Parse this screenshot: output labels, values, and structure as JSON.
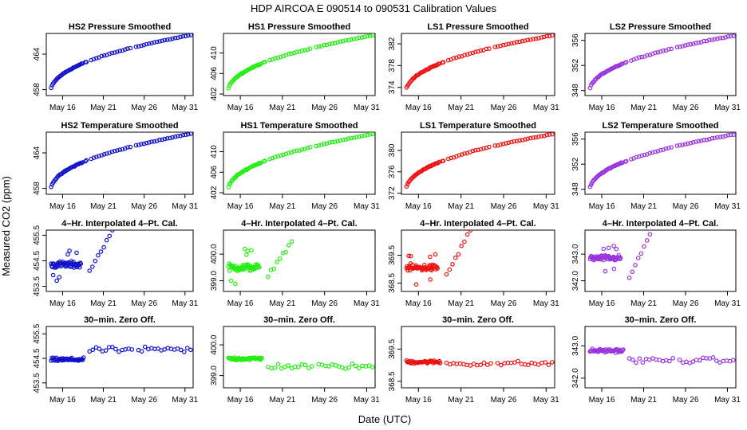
{
  "figure": {
    "title": "HDP   AIRCOA E   090514 to 090531   Calibration Values",
    "xlabel": "Date (UTC)",
    "ylabel": "Measured CO2 (ppm)"
  },
  "colors": {
    "HS2": "#1111cc",
    "HS1": "#22ee11",
    "LS1": "#ee1111",
    "LS2": "#9933dd"
  },
  "chart_data": {
    "type": "scatter",
    "x_unit": "day of May 2009",
    "x_range": [
      14,
      32
    ],
    "x_ticks": [
      {
        "value": 16,
        "label": "May 16"
      },
      {
        "value": 21,
        "label": "May 21"
      },
      {
        "value": 26,
        "label": "May 26"
      },
      {
        "value": 31,
        "label": "May 31"
      }
    ],
    "panels": [
      {
        "row": 0,
        "col": 0,
        "title": "HS2 Pressure Smoothed",
        "series": "HS2",
        "ylim": [
          457,
          467.5
        ],
        "yticks": [
          {
            "value": 458,
            "label": "458"
          },
          {
            "value": 464,
            "label": "464"
          }
        ],
        "pattern": "smooth",
        "y_start": 457.3,
        "y_end": 467.3
      },
      {
        "row": 0,
        "col": 1,
        "title": "HS1 Pressure Smoothed",
        "series": "HS1",
        "ylim": [
          401.7,
          413.8
        ],
        "yticks": [
          {
            "value": 402,
            "label": "402"
          },
          {
            "value": 406,
            "label": "406"
          },
          {
            "value": 410,
            "label": "410"
          }
        ],
        "pattern": "smooth",
        "y_start": 402.0,
        "y_end": 413.5
      },
      {
        "row": 0,
        "col": 2,
        "title": "LS1 Pressure Smoothed",
        "series": "LS1",
        "ylim": [
          372.5,
          383.9
        ],
        "yticks": [
          {
            "value": 374,
            "label": "374"
          },
          {
            "value": 378,
            "label": "378"
          },
          {
            "value": 382,
            "label": "382"
          }
        ],
        "pattern": "smooth",
        "y_start": 372.8,
        "y_end": 383.6
      },
      {
        "row": 0,
        "col": 3,
        "title": "LS2 Pressure Smoothed",
        "series": "LS2",
        "ylim": [
          347.2,
          357.1
        ],
        "yticks": [
          {
            "value": 348,
            "label": "348"
          },
          {
            "value": 352,
            "label": "352"
          },
          {
            "value": 356,
            "label": "356"
          }
        ],
        "pattern": "smooth",
        "y_start": 347.5,
        "y_end": 356.8
      },
      {
        "row": 1,
        "col": 0,
        "title": "HS2 Temperature Smoothed",
        "series": "HS2",
        "ylim": [
          457,
          467.5
        ],
        "yticks": [
          {
            "value": 458,
            "label": "458"
          },
          {
            "value": 464,
            "label": "464"
          }
        ],
        "pattern": "smooth",
        "y_start": 457.3,
        "y_end": 467.3
      },
      {
        "row": 1,
        "col": 1,
        "title": "HS1 Temperature Smoothed",
        "series": "HS1",
        "ylim": [
          401.7,
          413.8
        ],
        "yticks": [
          {
            "value": 402,
            "label": "402"
          },
          {
            "value": 406,
            "label": "406"
          },
          {
            "value": 410,
            "label": "410"
          }
        ],
        "pattern": "smooth",
        "y_start": 402.0,
        "y_end": 413.5
      },
      {
        "row": 1,
        "col": 2,
        "title": "LS1 Temperature Smoothed",
        "series": "LS1",
        "ylim": [
          371.8,
          383.4
        ],
        "yticks": [
          {
            "value": 372,
            "label": "372"
          },
          {
            "value": 376,
            "label": "376"
          },
          {
            "value": 380,
            "label": "380"
          }
        ],
        "pattern": "smooth",
        "y_start": 372.2,
        "y_end": 383.1
      },
      {
        "row": 1,
        "col": 3,
        "title": "LS2 Temperature Smoothed",
        "series": "LS2",
        "ylim": [
          347.2,
          357.1
        ],
        "yticks": [
          {
            "value": 348,
            "label": "348"
          },
          {
            "value": 352,
            "label": "352"
          },
          {
            "value": 356,
            "label": "356"
          }
        ],
        "pattern": "smooth",
        "y_start": 347.5,
        "y_end": 356.8
      },
      {
        "row": 2,
        "col": 0,
        "title": "4–Hr. Interpolated 4–Pt. Cal.",
        "series": "HS2",
        "ylim": [
          453.3,
          455.7
        ],
        "yticks": [
          {
            "value": 453.5,
            "label": "453.5"
          },
          {
            "value": 454.5,
            "label": "454.5"
          },
          {
            "value": 455.5,
            "label": "455.5"
          }
        ],
        "pattern": "cal",
        "y_center": 454.35,
        "y_spread": 0.18,
        "y_low": 453.7,
        "y_high": 455.6
      },
      {
        "row": 2,
        "col": 1,
        "title": "4–Hr. Interpolated 4–Pt. Cal.",
        "series": "HS1",
        "ylim": [
          398.6,
          400.9
        ],
        "yticks": [
          {
            "value": 399.0,
            "label": "399.0"
          },
          {
            "value": 400.0,
            "label": "400.0"
          }
        ],
        "pattern": "cal",
        "y_center": 399.5,
        "y_spread": 0.2,
        "y_low": 398.9,
        "y_high": 400.4
      },
      {
        "row": 2,
        "col": 2,
        "title": "4–Hr. Interpolated 4–Pt. Cal.",
        "series": "LS1",
        "ylim": [
          368.2,
          370.4
        ],
        "yticks": [
          {
            "value": 368.5,
            "label": "368.5"
          },
          {
            "value": 369.5,
            "label": "369.5"
          }
        ],
        "pattern": "cal",
        "y_center": 369.05,
        "y_spread": 0.18,
        "y_low": 368.4,
        "y_high": 370.3
      },
      {
        "row": 2,
        "col": 3,
        "title": "4–Hr. Interpolated 4–Pt. Cal.",
        "series": "LS2",
        "ylim": [
          341.6,
          343.9
        ],
        "yticks": [
          {
            "value": 342.0,
            "label": "342.0"
          },
          {
            "value": 343.0,
            "label": "343.0"
          }
        ],
        "pattern": "cal",
        "y_center": 342.85,
        "y_spread": 0.15,
        "y_low": 341.7,
        "y_high": 343.85
      },
      {
        "row": 3,
        "col": 0,
        "title": "30–min. Zero Off.",
        "series": "HS2",
        "ylim": [
          453.3,
          455.8
        ],
        "yticks": [
          {
            "value": 453.5,
            "label": "453.5"
          },
          {
            "value": 454.5,
            "label": "454.5"
          },
          {
            "value": 455.5,
            "label": "455.5"
          }
        ],
        "pattern": "zero",
        "y_early": 454.45,
        "y_late": 454.85,
        "y_spread": 0.1
      },
      {
        "row": 3,
        "col": 1,
        "title": "30–min. Zero Off.",
        "series": "HS1",
        "ylim": [
          398.6,
          400.6
        ],
        "yticks": [
          {
            "value": 399.0,
            "label": "399.0"
          },
          {
            "value": 400.0,
            "label": "400.0"
          }
        ],
        "pattern": "zero",
        "y_early": 399.55,
        "y_late": 399.3,
        "y_spread": 0.08
      },
      {
        "row": 3,
        "col": 2,
        "title": "30–min. Zero Off.",
        "series": "LS1",
        "ylim": [
          368.3,
          370.2
        ],
        "yticks": [
          {
            "value": 368.5,
            "label": "368.5"
          },
          {
            "value": 369.5,
            "label": "369.5"
          }
        ],
        "pattern": "zero",
        "y_early": 369.1,
        "y_late": 369.05,
        "y_spread": 0.07
      },
      {
        "row": 3,
        "col": 3,
        "title": "30–min. Zero Off.",
        "series": "LS2",
        "ylim": [
          341.7,
          343.6
        ],
        "yticks": [
          {
            "value": 342.0,
            "label": "342.0"
          },
          {
            "value": 343.0,
            "label": "343.0"
          }
        ],
        "pattern": "zero",
        "y_early": 342.85,
        "y_late": 342.55,
        "y_spread": 0.08
      }
    ]
  }
}
